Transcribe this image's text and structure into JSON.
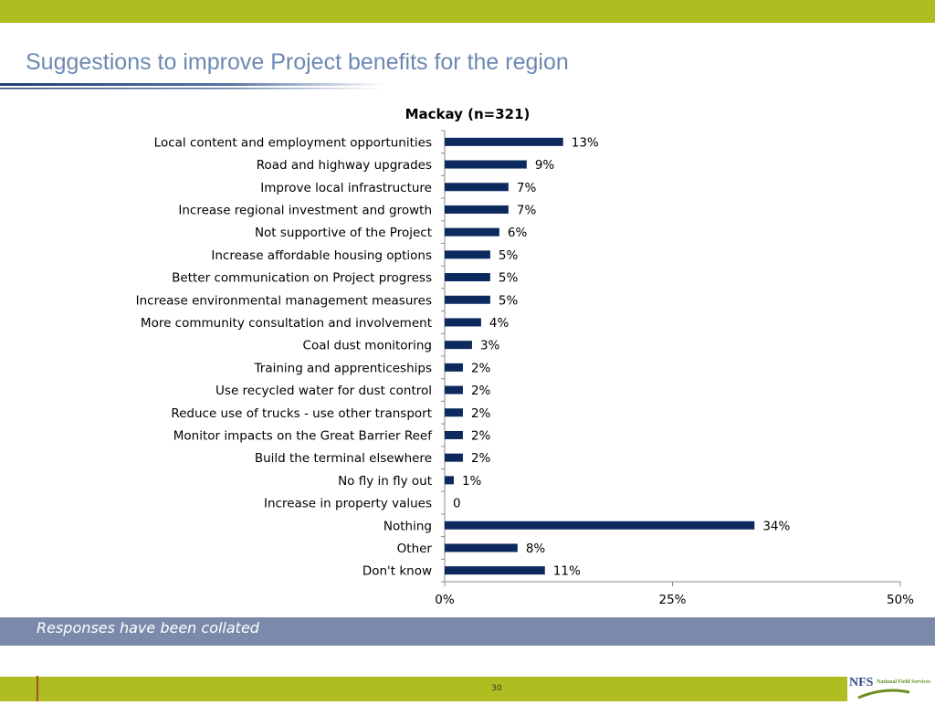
{
  "slide": {
    "title": "Suggestions to improve Project benefits for the region",
    "note": "Responses have been collated",
    "page_number": "30",
    "logo_text": "NFS",
    "logo_subtext": "National Field Services"
  },
  "colors": {
    "band": "#b0bd20",
    "title": "#6d89b1",
    "bar": "#0d2a5e",
    "note_band": "#7b8aab"
  },
  "chart_data": {
    "type": "bar",
    "orientation": "horizontal",
    "title": "Mackay (n=321)",
    "categories": [
      "Local content and employment opportunities",
      "Road and highway upgrades",
      "Improve local infrastructure",
      "Increase regional investment and growth",
      "Not supportive of the Project",
      "Increase affordable housing options",
      "Better communication on Project progress",
      "Increase environmental management measures",
      "More community consultation and involvement",
      "Coal dust monitoring",
      "Training and apprenticeships",
      "Use recycled water  for dust control",
      "Reduce use of trucks - use other transport",
      "Monitor impacts on the  Great Barrier Reef",
      "Build the terminal elsewhere",
      "No fly in fly out",
      "Increase in property values",
      "Nothing",
      "Other",
      "Don't know"
    ],
    "values": [
      13,
      9,
      7,
      7,
      6,
      5,
      5,
      5,
      4,
      3,
      2,
      2,
      2,
      2,
      2,
      1,
      0,
      34,
      8,
      11
    ],
    "data_labels": [
      "13%",
      "9%",
      "7%",
      "7%",
      "6%",
      "5%",
      "5%",
      "5%",
      "4%",
      "3%",
      "2%",
      "2%",
      "2%",
      "2%",
      "2%",
      "1%",
      "0",
      "34%",
      "8%",
      "11%"
    ],
    "xlim": [
      0,
      50
    ],
    "xticks": [
      0,
      25,
      50
    ],
    "xtick_labels": [
      "0%",
      "25%",
      "50%"
    ],
    "xlabel": "",
    "ylabel": "",
    "grid": false,
    "legend": false
  }
}
